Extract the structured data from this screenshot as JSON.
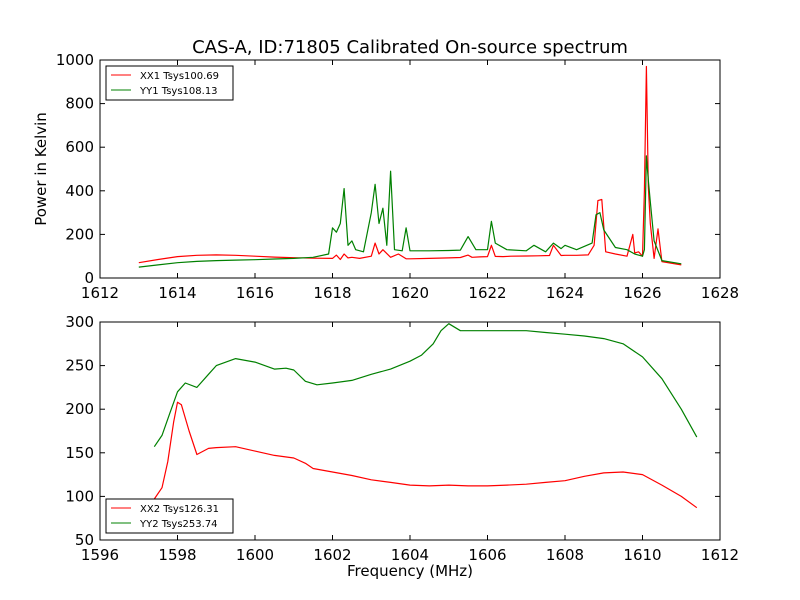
{
  "chart_data": [
    {
      "type": "line",
      "title": "CAS-A, ID:71805 Calibrated On-source spectrum",
      "xlabel": "",
      "ylabel": "Power in Kelvin",
      "xlim": [
        1612,
        1628
      ],
      "ylim": [
        0,
        1000
      ],
      "xticks": [
        1612,
        1614,
        1616,
        1618,
        1620,
        1622,
        1624,
        1626,
        1628
      ],
      "yticks": [
        0,
        200,
        400,
        600,
        800,
        1000
      ],
      "legend_position": "upper-left",
      "grid": false,
      "series": [
        {
          "name": "XX1 Tsys100.69",
          "color": "#ff0000",
          "x": [
            1613.0,
            1613.5,
            1614.0,
            1614.5,
            1615.0,
            1615.5,
            1616.0,
            1616.5,
            1617.0,
            1617.5,
            1618.0,
            1618.1,
            1618.2,
            1618.3,
            1618.4,
            1618.5,
            1618.7,
            1619.0,
            1619.1,
            1619.2,
            1619.3,
            1619.5,
            1619.7,
            1619.9,
            1620.0,
            1620.5,
            1621.0,
            1621.3,
            1621.5,
            1621.6,
            1621.8,
            1622.0,
            1622.1,
            1622.2,
            1622.4,
            1622.6,
            1623.0,
            1623.3,
            1623.6,
            1623.7,
            1623.9,
            1624.0,
            1624.3,
            1624.6,
            1624.75,
            1624.85,
            1624.95,
            1625.05,
            1625.3,
            1625.6,
            1625.75,
            1625.8,
            1625.9,
            1626.0,
            1626.05,
            1626.1,
            1626.15,
            1626.2,
            1626.3,
            1626.4,
            1626.5,
            1627.0
          ],
          "y": [
            70,
            85,
            98,
            104,
            106,
            104,
            100,
            96,
            93,
            91,
            90,
            105,
            85,
            110,
            92,
            95,
            90,
            100,
            160,
            110,
            130,
            95,
            110,
            88,
            88,
            90,
            92,
            94,
            105,
            95,
            97,
            98,
            150,
            99,
            98,
            100,
            101,
            102,
            103,
            150,
            103,
            104,
            104,
            106,
            150,
            355,
            360,
            120,
            110,
            100,
            200,
            115,
            120,
            100,
            400,
            970,
            420,
            250,
            90,
            225,
            75,
            60
          ]
        },
        {
          "name": "YY1 Tsys108.13",
          "color": "#008000",
          "x": [
            1613.0,
            1613.5,
            1614.0,
            1614.5,
            1615.0,
            1615.5,
            1616.0,
            1616.5,
            1617.0,
            1617.5,
            1617.9,
            1618.0,
            1618.1,
            1618.2,
            1618.3,
            1618.4,
            1618.5,
            1618.6,
            1618.8,
            1619.0,
            1619.1,
            1619.2,
            1619.3,
            1619.4,
            1619.5,
            1619.6,
            1619.8,
            1619.9,
            1620.0,
            1620.5,
            1621.0,
            1621.3,
            1621.5,
            1621.7,
            1622.0,
            1622.1,
            1622.2,
            1622.5,
            1623.0,
            1623.2,
            1623.5,
            1623.7,
            1623.9,
            1624.0,
            1624.3,
            1624.7,
            1624.8,
            1624.9,
            1625.0,
            1625.3,
            1625.6,
            1625.8,
            1626.0,
            1626.05,
            1626.1,
            1626.15,
            1626.2,
            1626.3,
            1626.5,
            1627.0
          ],
          "y": [
            50,
            60,
            70,
            76,
            80,
            82,
            84,
            87,
            90,
            95,
            110,
            230,
            210,
            250,
            410,
            150,
            170,
            130,
            120,
            300,
            430,
            250,
            320,
            150,
            490,
            130,
            125,
            230,
            125,
            125,
            126,
            128,
            190,
            130,
            130,
            260,
            160,
            130,
            125,
            150,
            120,
            160,
            135,
            150,
            130,
            160,
            290,
            300,
            220,
            140,
            130,
            110,
            100,
            130,
            560,
            450,
            350,
            170,
            80,
            65
          ]
        }
      ]
    },
    {
      "type": "line",
      "title": "",
      "xlabel": "Frequency (MHz)",
      "ylabel": "",
      "xlim": [
        1596,
        1612
      ],
      "ylim": [
        50,
        300
      ],
      "xticks": [
        1596,
        1598,
        1600,
        1602,
        1604,
        1606,
        1608,
        1610,
        1612
      ],
      "yticks": [
        50,
        100,
        150,
        200,
        250,
        300
      ],
      "legend_position": "lower-left",
      "grid": false,
      "series": [
        {
          "name": "XX2 Tsys126.31",
          "color": "#ff0000",
          "x": [
            1597.4,
            1597.6,
            1597.75,
            1597.9,
            1598.0,
            1598.1,
            1598.3,
            1598.5,
            1598.8,
            1599.0,
            1599.5,
            1600.0,
            1600.5,
            1601.0,
            1601.3,
            1601.5,
            1602.0,
            1602.5,
            1603.0,
            1603.5,
            1604.0,
            1604.5,
            1605.0,
            1605.5,
            1606.0,
            1606.5,
            1607.0,
            1607.5,
            1608.0,
            1608.5,
            1609.0,
            1609.5,
            1610.0,
            1610.5,
            1611.0,
            1611.4
          ],
          "y": [
            97,
            110,
            140,
            185,
            208,
            205,
            175,
            148,
            155,
            156,
            157,
            152,
            147,
            144,
            138,
            132,
            128,
            124,
            119,
            116,
            113,
            112,
            113,
            112,
            112,
            113,
            114,
            116,
            118,
            123,
            127,
            128,
            125,
            113,
            100,
            87
          ]
        },
        {
          "name": "YY2 Tsys253.74",
          "color": "#008000",
          "x": [
            1597.4,
            1597.6,
            1597.8,
            1598.0,
            1598.2,
            1598.5,
            1598.8,
            1599.0,
            1599.5,
            1600.0,
            1600.5,
            1600.8,
            1601.0,
            1601.3,
            1601.6,
            1602.0,
            1602.5,
            1603.0,
            1603.5,
            1604.0,
            1604.3,
            1604.6,
            1604.8,
            1605.0,
            1605.3,
            1605.5,
            1606.0,
            1606.5,
            1607.0,
            1607.5,
            1608.0,
            1608.5,
            1609.0,
            1609.5,
            1610.0,
            1610.5,
            1611.0,
            1611.4
          ],
          "y": [
            157,
            170,
            195,
            220,
            230,
            225,
            240,
            250,
            258,
            254,
            246,
            247,
            245,
            232,
            228,
            230,
            233,
            240,
            246,
            255,
            262,
            275,
            290,
            298,
            290,
            290,
            290,
            290,
            290,
            288,
            286,
            284,
            281,
            275,
            260,
            235,
            200,
            168
          ]
        }
      ]
    }
  ]
}
